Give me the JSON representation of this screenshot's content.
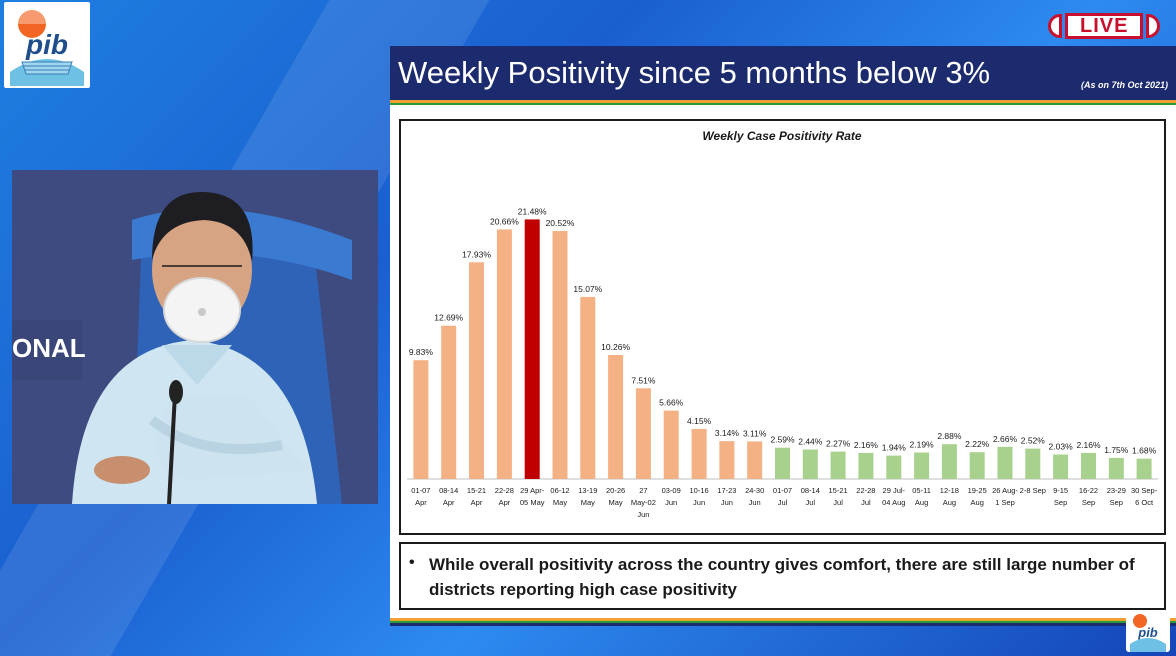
{
  "broadcast": {
    "logo_text": "pib",
    "live_label": "LIVE",
    "backdrop_text": "ONAL"
  },
  "slide": {
    "title": "Weekly Positivity since 5 months below 3%",
    "as_on": "(As on 7th Oct 2021)",
    "note": "While overall positivity across the country gives comfort, there are still large number of districts reporting high case positivity"
  },
  "colors": {
    "bar_orange": "#f4b183",
    "bar_red": "#c00000",
    "bar_green": "#a9d18e",
    "header_navy": "#1c2a6e"
  },
  "chart_data": {
    "type": "bar",
    "title": "Weekly Case Positivity Rate",
    "xlabel": "",
    "ylabel": "",
    "ylim": [
      0,
      24
    ],
    "grid": false,
    "categories": [
      [
        "01-07",
        "Apr"
      ],
      [
        "08-14",
        "Apr"
      ],
      [
        "15-21",
        "Apr"
      ],
      [
        "22-28",
        "Apr"
      ],
      [
        "29 Apr-",
        "05 May"
      ],
      [
        "06-12",
        "May"
      ],
      [
        "13-19",
        "May"
      ],
      [
        "20-26",
        "May"
      ],
      [
        "27",
        "May-02",
        "Jun"
      ],
      [
        "03-09",
        "Jun"
      ],
      [
        "10-16",
        "Jun"
      ],
      [
        "17-23",
        "Jun"
      ],
      [
        "24-30",
        "Jun"
      ],
      [
        "01-07",
        "Jul"
      ],
      [
        "08-14",
        "Jul"
      ],
      [
        "15-21",
        "Jul"
      ],
      [
        "22-28",
        "Jul"
      ],
      [
        "29 Jul-",
        "04 Aug"
      ],
      [
        "05-11",
        "Aug"
      ],
      [
        "12-18",
        "Aug"
      ],
      [
        "19-25",
        "Aug"
      ],
      [
        "26 Aug-",
        "1 Sep"
      ],
      [
        "2-8 Sep"
      ],
      [
        "9-15",
        "Sep"
      ],
      [
        "16-22",
        "Sep"
      ],
      [
        "23-29",
        "Sep"
      ],
      [
        "30 Sep-",
        "6 Oct"
      ]
    ],
    "values": [
      9.83,
      12.69,
      17.93,
      20.66,
      21.48,
      20.52,
      15.07,
      10.26,
      7.51,
      5.66,
      4.15,
      3.14,
      3.11,
      2.59,
      2.44,
      2.27,
      2.16,
      1.94,
      2.19,
      2.88,
      2.22,
      2.66,
      2.52,
      2.03,
      2.16,
      1.75,
      1.68
    ],
    "data_labels": [
      "9.83%",
      "12.69%",
      "17.93%",
      "20.66%",
      "21.48%",
      "20.52%",
      "15.07%",
      "10.26%",
      "7.51%",
      "5.66%",
      "4.15%",
      "3.14%",
      "3.11%",
      "2.59%",
      "2.44%",
      "2.27%",
      "2.16%",
      "1.94%",
      "2.19%",
      "2.88%",
      "2.22%",
      "2.66%",
      "2.52%",
      "2.03%",
      "2.16%",
      "1.75%",
      "1.68%"
    ],
    "bar_colors": [
      "orange",
      "orange",
      "orange",
      "orange",
      "red",
      "orange",
      "orange",
      "orange",
      "orange",
      "orange",
      "orange",
      "orange",
      "orange",
      "green",
      "green",
      "green",
      "green",
      "green",
      "green",
      "green",
      "green",
      "green",
      "green",
      "green",
      "green",
      "green",
      "green"
    ]
  }
}
